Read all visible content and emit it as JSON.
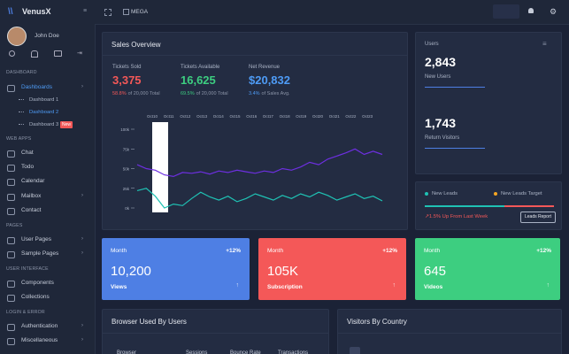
{
  "brand": "VenusX",
  "user": "John Doe",
  "topbar": {
    "menu": "MEGA"
  },
  "sidebar": {
    "sections": [
      {
        "title": "DASHBOARD",
        "items": [
          {
            "label": "Dashboards",
            "children": [
              "Dashboard 1",
              "Dashboard 2",
              "Dashboard 3"
            ],
            "badge": "New"
          }
        ]
      },
      {
        "title": "WEB APPS",
        "items": [
          {
            "label": "Chat"
          },
          {
            "label": "Todo"
          },
          {
            "label": "Calendar"
          },
          {
            "label": "Mailbox"
          },
          {
            "label": "Contact"
          }
        ]
      },
      {
        "title": "PAGES",
        "items": [
          {
            "label": "User Pages"
          },
          {
            "label": "Sample Pages"
          }
        ]
      },
      {
        "title": "USER INTERFACE",
        "items": [
          {
            "label": "Components"
          },
          {
            "label": "Collections"
          }
        ]
      },
      {
        "title": "LOGIN & ERROR",
        "items": [
          {
            "label": "Authentication"
          },
          {
            "label": "Miscellaneous"
          }
        ]
      }
    ]
  },
  "sales": {
    "title": "Sales Overview",
    "stats": [
      {
        "label": "Tickets Sold",
        "value": "3,375",
        "pct": "58.8%",
        "note": "of 20,000 Total"
      },
      {
        "label": "Tickets Available",
        "value": "16,625",
        "pct": "69.5%",
        "note": "of 20,000 Total"
      },
      {
        "label": "Net Revenue",
        "value": "$20,832",
        "pct": "3.4%",
        "note": "of Sales Avg."
      }
    ],
    "chart": {
      "type": "line",
      "x_labels": [
        "Oct10",
        "Oct11",
        "Oct12",
        "Oct13",
        "Oct14",
        "Oct15",
        "Oct16",
        "Oct17",
        "Oct18",
        "Oct19",
        "Oct20",
        "Oct21",
        "Oct22",
        "Oct23"
      ],
      "ylim": [
        0,
        100
      ],
      "yticks": [
        {
          "value": 0,
          "label": "0k"
        },
        {
          "value": 25,
          "label": "25k"
        },
        {
          "value": 50,
          "label": "50k"
        },
        {
          "value": 75,
          "label": "75k"
        },
        {
          "value": 100,
          "label": "100k"
        }
      ],
      "series": [
        {
          "color": "#6d2fe0",
          "values": [
            55,
            50,
            48,
            42,
            40,
            45,
            44,
            46,
            43,
            47,
            45,
            48,
            46,
            44,
            47,
            45,
            50,
            48,
            52,
            58,
            55,
            62,
            66,
            70,
            75,
            68,
            72,
            68
          ]
        },
        {
          "color": "#1fc2b4",
          "values": [
            22,
            25,
            15,
            0,
            5,
            3,
            12,
            20,
            14,
            10,
            15,
            8,
            12,
            18,
            14,
            10,
            16,
            12,
            18,
            14,
            20,
            16,
            10,
            14,
            18,
            12,
            15,
            9
          ]
        }
      ]
    }
  },
  "users": {
    "title": "Users",
    "new": {
      "value": "2,843",
      "label": "New Users",
      "color": "#1fc2b4",
      "bars": [
        92,
        72,
        63,
        66
      ]
    },
    "return": {
      "value": "1,743",
      "label": "Return Visitors",
      "color": "#3b3fd6",
      "bars": [
        90,
        86,
        77,
        82
      ]
    }
  },
  "leads": {
    "new": "New Leads",
    "target": "New Leads Target",
    "change": "1.5% Up From Last Week",
    "button": "Leads Report"
  },
  "tiles": [
    {
      "period": "Month",
      "change": "+12%",
      "value": "10,200",
      "label": "Views",
      "color": "#4e7fe4"
    },
    {
      "period": "Month",
      "change": "+12%",
      "value": "105K",
      "label": "Subscription",
      "color": "#f45858"
    },
    {
      "period": "Month",
      "change": "+12%",
      "value": "645",
      "label": "Videos",
      "color": "#3dce80"
    }
  ],
  "browser": {
    "title": "Browser Used By Users",
    "columns": [
      "Browser",
      "Sessions",
      "Bounce Rate",
      "Transactions"
    ]
  },
  "country": {
    "title": "Visitors By Country"
  }
}
